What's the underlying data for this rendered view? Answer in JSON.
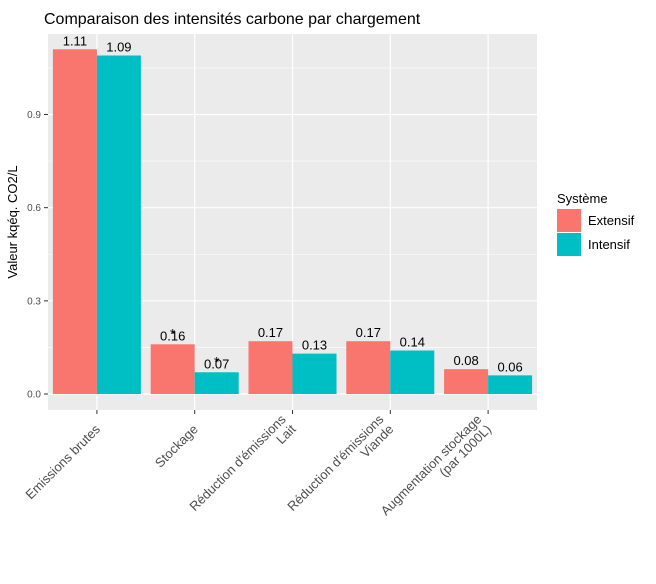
{
  "chart_data": {
    "type": "bar",
    "title": "Comparaison des intensités carbone par chargement",
    "xlabel": "",
    "ylabel": "Valeur kqéq. CO2/L",
    "ylim": [
      0,
      1.18
    ],
    "yticks": [
      0.0,
      0.3,
      0.6,
      0.9
    ],
    "ytick_labels": [
      "0.0",
      "0.3",
      "0.6",
      "0.9"
    ],
    "grid": true,
    "legend_position": "right",
    "legend_title": "Système",
    "categories": [
      [
        "Emissions brutes"
      ],
      [
        "Stockage"
      ],
      [
        "Réduction d'émissions",
        "Lait"
      ],
      [
        "Réduction d'émissions",
        "Viande"
      ],
      [
        "Augmentation stockage",
        "(par 1000L)"
      ]
    ],
    "series": [
      {
        "name": "Extensif",
        "color": "#F8766D",
        "values": [
          1.11,
          0.16,
          0.17,
          0.17,
          0.08
        ],
        "labels": [
          "1.11",
          "0.16",
          "0.17",
          "0.17",
          "0.08"
        ]
      },
      {
        "name": "Intensif",
        "color": "#00BFC4",
        "values": [
          1.09,
          0.07,
          0.13,
          0.14,
          0.06
        ],
        "labels": [
          "1.09",
          "0.07",
          "0.13",
          "0.14",
          "0.06"
        ]
      }
    ],
    "annotations": [
      {
        "text": "*",
        "category": 1,
        "series": 0
      },
      {
        "text": "*",
        "category": 1,
        "series": 1
      }
    ]
  }
}
